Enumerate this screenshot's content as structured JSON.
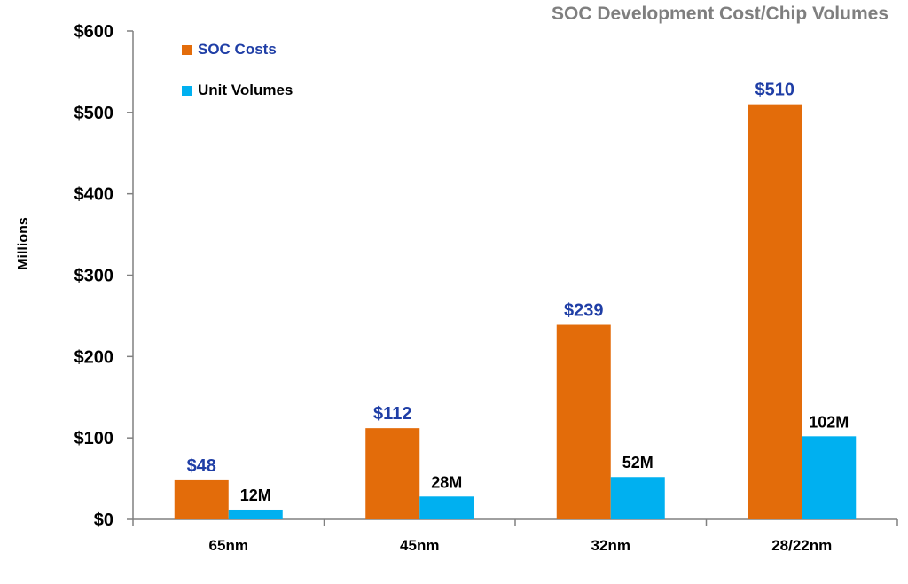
{
  "chart_data": {
    "type": "bar",
    "title": "SOC Development Cost/Chip Volumes",
    "ylabel": "Millions",
    "xlabel": "",
    "ylim": [
      0,
      600
    ],
    "yticks": [
      0,
      100,
      200,
      300,
      400,
      500,
      600
    ],
    "ytick_labels": [
      "$0",
      "$100",
      "$200",
      "$300",
      "$400",
      "$500",
      "$600"
    ],
    "categories": [
      "65nm",
      "45nm",
      "32nm",
      "28/22nm"
    ],
    "legend_position": "top-left",
    "grid": false,
    "series": [
      {
        "name": "SOC Costs",
        "color": "#e36c0a",
        "label_color": "#1f3ea6",
        "values": [
          48,
          112,
          239,
          510
        ],
        "labels": [
          "$48",
          "$112",
          "$239",
          "$510"
        ]
      },
      {
        "name": "Unit Volumes",
        "color": "#00b0f0",
        "label_color": "#000000",
        "values": [
          12,
          28,
          52,
          102
        ],
        "labels": [
          "12M",
          "28M",
          "52M",
          "102M"
        ]
      }
    ]
  }
}
